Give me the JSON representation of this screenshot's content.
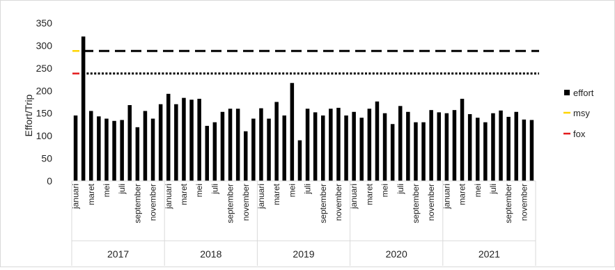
{
  "chart_data": {
    "type": "bar",
    "ylabel": "Effort/Trip",
    "ylim": [
      0,
      350
    ],
    "yticks": [
      0,
      50,
      100,
      150,
      200,
      250,
      300,
      350
    ],
    "grid": false,
    "legend_position": "right",
    "month_labels": [
      "januari",
      "maret",
      "mei",
      "juli",
      "september",
      "november"
    ],
    "label_months": [
      0,
      2,
      4,
      6,
      8,
      10
    ],
    "years": [
      "2017",
      "2018",
      "2019",
      "2020",
      "2021"
    ],
    "series": [
      {
        "name": "effort",
        "color": "#000000",
        "values": [
          145,
          320,
          155,
          143,
          138,
          133,
          135,
          168,
          119,
          155,
          138,
          170,
          193,
          170,
          184,
          180,
          182,
          122,
          130,
          153,
          160,
          160,
          110,
          138,
          161,
          138,
          175,
          145,
          217,
          90,
          160,
          152,
          145,
          160,
          162,
          145,
          153,
          140,
          160,
          176,
          150,
          126,
          166,
          153,
          130,
          130,
          157,
          152,
          150,
          157,
          182,
          148,
          140,
          130,
          150,
          156,
          142,
          153,
          136,
          135
        ]
      },
      {
        "name": "msy",
        "color": "#ffd500",
        "value": 288,
        "line_style": "dashed"
      },
      {
        "name": "fox",
        "color": "#e31a1c",
        "value": 238,
        "line_style": "dotted"
      }
    ]
  }
}
